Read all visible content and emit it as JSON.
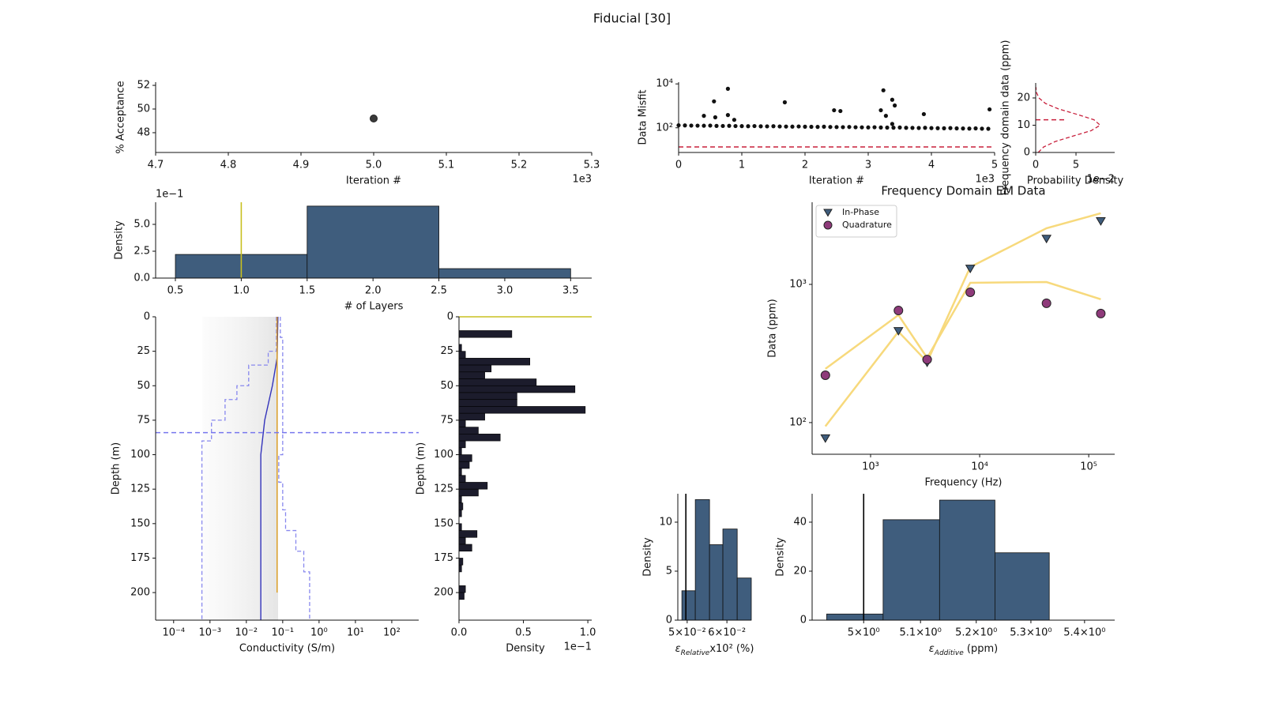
{
  "title": "Fiducial [30]",
  "chart_data": [
    {
      "type": "scatter",
      "xlabel": "Iteration #",
      "ylabel": "% Acceptance",
      "x_offset": "1e3",
      "xlim": [
        4700,
        5300
      ],
      "ylim": [
        46.33,
        52.27
      ],
      "xticks": [
        {
          "value": 4700,
          "label": "4.7"
        },
        {
          "value": 4800,
          "label": "4.8"
        },
        {
          "value": 4900,
          "label": "4.9"
        },
        {
          "value": 5000,
          "label": "5.0"
        },
        {
          "value": 5100,
          "label": "5.1"
        },
        {
          "value": 5200,
          "label": "5.2"
        },
        {
          "value": 5300,
          "label": "5.3"
        }
      ],
      "yticks": [
        48,
        50,
        52
      ],
      "series": [
        {
          "color": "#3a3a3a",
          "marker": "o",
          "x": [
            5000
          ],
          "y": [
            49.2
          ]
        }
      ]
    },
    {
      "type": "scatter",
      "xlabel": "Iteration #",
      "ylabel": "Data Misfit",
      "x_offset": "1e3",
      "yscale": "log",
      "xlim": [
        0,
        5000
      ],
      "ylim": [
        7.5,
        12000
      ],
      "xticks": [
        0,
        {
          "value": 1000,
          "label": "1"
        },
        {
          "value": 2000,
          "label": "2"
        },
        {
          "value": 3000,
          "label": "3"
        },
        {
          "value": 4000,
          "label": "4"
        },
        {
          "value": 5000,
          "label": "5"
        }
      ],
      "yticks": [
        {
          "value": 100,
          "label": "10²"
        },
        {
          "value": 10000,
          "label": "10⁴"
        }
      ],
      "hlines": [
        {
          "value": 13.4,
          "color": "#c8203c",
          "dash": true
        }
      ],
      "series": [
        {
          "color": "#111111",
          "marker": "o",
          "x": [
            0,
            100,
            200,
            300,
            400,
            500,
            600,
            700,
            800,
            900,
            1000,
            1100,
            1200,
            1300,
            1400,
            1500,
            1600,
            1700,
            1800,
            1900,
            2000,
            2100,
            2200,
            2300,
            2400,
            2500,
            2600,
            2700,
            2800,
            2900,
            3000,
            3100,
            3200,
            3300,
            3400,
            3500,
            3600,
            3700,
            3800,
            3900,
            4000,
            4100,
            4200,
            4300,
            4400,
            4500,
            4600,
            4700,
            4800,
            4900,
            400,
            560,
            580,
            780,
            780,
            880,
            1680,
            2460,
            2560,
            3200,
            3240,
            3280,
            3380,
            3380,
            3420,
            3880,
            4920
          ],
          "y": [
            130,
            128,
            126,
            125,
            124,
            126,
            122,
            121,
            123,
            120,
            119,
            118,
            120,
            117,
            116,
            118,
            115,
            114,
            113,
            115,
            112,
            111,
            110,
            112,
            109,
            108,
            107,
            109,
            106,
            105,
            104,
            106,
            103,
            102,
            101,
            103,
            100,
            99,
            98,
            100,
            97,
            96,
            95,
            97,
            94,
            93,
            92,
            94,
            91,
            90,
            350,
            1600,
            300,
            6000,
            380,
            230,
            1450,
            630,
            580,
            630,
            5100,
            350,
            1900,
            150,
            1040,
            420,
            690
          ]
        }
      ]
    },
    {
      "type": "line",
      "xlabel": "Probability Density",
      "ylabel": "Frequency domain data (ppm)",
      "x_offset": "1e−2",
      "xlim": [
        0,
        9.8
      ],
      "ylim": [
        0,
        25.5
      ],
      "xticks": [
        0,
        5
      ],
      "yticks": [
        0,
        10,
        20
      ],
      "hlines": [
        {
          "value": 12,
          "color": "#c8203c",
          "dash": true,
          "xrange": [
            0,
            3.8
          ]
        }
      ],
      "series": [
        {
          "color": "#c8203c",
          "dash": true,
          "x": [
            0.31,
            0.98,
            2.41,
            4.62,
            6.88,
            8.0,
            7.23,
            5.1,
            2.8,
            1.2,
            0.4,
            0.1,
            0.02
          ],
          "y": [
            0,
            2,
            4,
            6,
            8,
            10,
            12,
            14,
            16,
            18,
            20,
            22,
            24
          ]
        }
      ]
    },
    {
      "type": "histogram",
      "xlabel": "# of Layers",
      "ylabel": "Density",
      "y_offset": "1e−1",
      "xlim": [
        0.35,
        3.66
      ],
      "ylim": [
        0,
        7.06
      ],
      "xticks": [
        0.5,
        {
          "value": 1,
          "label": "1.0"
        },
        1.5,
        {
          "value": 2,
          "label": "2.0"
        },
        2.5,
        {
          "value": 3,
          "label": "3.0"
        },
        3.5
      ],
      "yticks": [
        {
          "value": 0,
          "label": "0.0"
        },
        2.5,
        {
          "value": 5,
          "label": "5.0"
        }
      ],
      "bins": [
        0.5,
        1.5,
        2.5,
        3.5
      ],
      "values": [
        2.2,
        6.7,
        0.88
      ],
      "color": "#3f5d7d",
      "vlines": [
        {
          "value": 1.0,
          "color": "#c8c020"
        }
      ]
    },
    {
      "type": "line",
      "xlabel": "Conductivity (S/m)",
      "ylabel": "Depth (m)",
      "xscale": "log",
      "xlim": [
        3.2e-05,
        550
      ],
      "ylim": [
        220,
        0
      ],
      "xticks": [
        {
          "value": 0.0001,
          "label": "10⁻⁴"
        },
        {
          "value": 0.001,
          "label": "10⁻³"
        },
        {
          "value": 0.01,
          "label": "10⁻²"
        },
        {
          "value": 0.1,
          "label": "10⁻¹"
        },
        {
          "value": 1,
          "label": "10⁰"
        },
        {
          "value": 10,
          "label": "10¹"
        },
        {
          "value": 100,
          "label": "10²"
        }
      ],
      "yticks": [
        0,
        25,
        50,
        75,
        100,
        125,
        150,
        175,
        200
      ],
      "hlines": [
        {
          "value": 84,
          "color": "#7777ee",
          "dash": true
        }
      ],
      "series": [
        {
          "color": "#8888ee",
          "dash": true,
          "x": [
            0.067,
            0.067,
            0.04,
            0.04,
            0.0116,
            0.0116,
            0.0055,
            0.0055,
            0.0026,
            0.0026,
            0.0011,
            0.0011,
            0.0006,
            0.0006
          ],
          "y": [
            0,
            25,
            25,
            35,
            35,
            50,
            50,
            60,
            60,
            75,
            75,
            90,
            90,
            220
          ]
        },
        {
          "color": "#3333bb",
          "x": [
            0.074,
            0.07,
            0.052,
            0.032,
            0.025,
            0.025
          ],
          "y": [
            0,
            30,
            50,
            75,
            100,
            220
          ]
        },
        {
          "color": "#8888ee",
          "dash": true,
          "x": [
            0.086,
            0.086,
            0.1,
            0.1,
            0.078,
            0.078,
            0.1,
            0.1,
            0.12,
            0.12,
            0.23,
            0.23,
            0.38,
            0.38,
            0.55,
            0.55
          ],
          "y": [
            0,
            15,
            15,
            100,
            100,
            120,
            120,
            140,
            140,
            155,
            155,
            170,
            170,
            185,
            185,
            220
          ]
        },
        {
          "color": "#e0a020",
          "x": [
            0.07,
            0.07
          ],
          "y": [
            0,
            200
          ]
        }
      ]
    },
    {
      "type": "histogram",
      "orientation": "horizontal",
      "xlabel": "Density",
      "ylabel": "Depth (m)",
      "x_offset": "1e−1",
      "xlim": [
        0,
        1.03
      ],
      "ylim": [
        220,
        0
      ],
      "xticks": [
        {
          "value": 0,
          "label": "0.0"
        },
        0.5,
        {
          "value": 1,
          "label": "1.0"
        }
      ],
      "yticks": [
        0,
        25,
        50,
        75,
        100,
        125,
        150,
        175,
        200
      ],
      "bins": [
        0,
        5,
        10,
        15,
        20,
        25,
        30,
        35,
        40,
        45,
        50,
        55,
        60,
        65,
        70,
        75,
        80,
        85,
        90,
        95,
        100,
        105,
        110,
        115,
        120,
        125,
        130,
        135,
        140,
        145,
        150,
        155,
        160,
        165,
        170,
        175,
        180,
        185,
        190,
        195,
        200,
        205,
        210,
        215,
        220
      ],
      "values": [
        0,
        0,
        0.41,
        0,
        0.02,
        0.05,
        0.55,
        0.25,
        0.2,
        0.6,
        0.9,
        0.45,
        0.45,
        0.98,
        0.2,
        0.05,
        0.15,
        0.32,
        0.05,
        0.02,
        0.1,
        0.08,
        0.02,
        0.05,
        0.22,
        0.15,
        0.02,
        0.03,
        0.02,
        0,
        0.02,
        0.14,
        0.05,
        0.1,
        0,
        0.03,
        0.02,
        0,
        0,
        0.05,
        0.04,
        0,
        0,
        0
      ],
      "color": "#1c1c2c",
      "hlines": [
        {
          "value": 0,
          "color": "#c8c020"
        }
      ]
    },
    {
      "type": "scatter",
      "title": "Frequency Domain EM Data",
      "xlabel": "Frequency (Hz)",
      "ylabel": "Data (ppm)",
      "xscale": "log",
      "yscale": "log",
      "xlim": [
        291,
        173000
      ],
      "ylim": [
        59,
        3930
      ],
      "legend": "upper left",
      "xticks": [
        {
          "value": 1000,
          "label": "10³"
        },
        {
          "value": 10000,
          "label": "10⁴"
        },
        {
          "value": 100000,
          "label": "10⁵"
        }
      ],
      "yticks": [
        {
          "value": 100,
          "label": "10²"
        },
        {
          "value": 1000,
          "label": "10³"
        }
      ],
      "series": [
        {
          "line": true,
          "color": "#f7d97c",
          "x": [
            385,
            1800,
            3300,
            8200,
            41000,
            129000
          ],
          "y": [
            94,
            455,
            275,
            1335,
            2550,
            3270
          ]
        },
        {
          "line": true,
          "color": "#f7d97c",
          "x": [
            385,
            1800,
            3300,
            8200,
            41000,
            129000
          ],
          "y": [
            245,
            600,
            294,
            1027,
            1040,
            780
          ]
        },
        {
          "name": "In-Phase",
          "marker": "v",
          "color": "#3f5d7d",
          "x": [
            385,
            1800,
            3300,
            8200,
            41000,
            129000
          ],
          "y": [
            77,
            460,
            272,
            1300,
            2140,
            2870
          ]
        },
        {
          "name": "Quadrature",
          "marker": "o",
          "color": "#8e3a7a",
          "x": [
            385,
            1800,
            3300,
            8200,
            41000,
            129000
          ],
          "y": [
            220,
            647,
            286,
            877,
            730,
            615
          ]
        }
      ]
    },
    {
      "type": "histogram",
      "xlabel": [
        "ε",
        "Relative",
        "x10² (%)"
      ],
      "ylabel": "Density",
      "xscale": "log",
      "xlim": [
        0.0479,
        0.0671
      ],
      "ylim": [
        0,
        12.9
      ],
      "xticks": [
        {
          "value": 0.05,
          "label": "5×10⁻²"
        },
        {
          "value": 0.06,
          "label": "6×10⁻²"
        }
      ],
      "yticks": [
        0,
        5,
        10
      ],
      "bins": [
        0.0488,
        0.0519,
        0.0554,
        0.0589,
        0.0629,
        0.0671
      ],
      "values": [
        3.0,
        12.3,
        7.7,
        9.3,
        4.3
      ],
      "color": "#3f5d7d",
      "vlines": [
        {
          "value": 0.0497,
          "color": "#000000"
        }
      ]
    },
    {
      "type": "histogram",
      "xlabel": [
        "ε",
        "Additive",
        " (ppm)"
      ],
      "ylabel": "Density",
      "xscale": "log",
      "xlim": [
        4.911,
        5.457
      ],
      "ylim": [
        0,
        51.6
      ],
      "xticks": [
        {
          "value": 5.0,
          "label": "5×10⁰"
        },
        {
          "value": 5.1,
          "label": "5.1×10⁰"
        },
        {
          "value": 5.2,
          "label": "5.2×10⁰"
        },
        {
          "value": 5.3,
          "label": "5.3×10⁰"
        },
        {
          "value": 5.4,
          "label": "5.4×10⁰"
        }
      ],
      "yticks": [
        0,
        20,
        40
      ],
      "bins": [
        4.936,
        5.034,
        5.134,
        5.234,
        5.334
      ],
      "values": [
        2.5,
        41,
        49,
        27.5
      ],
      "color": "#3f5d7d",
      "vlines": [
        {
          "value": 5.0,
          "color": "#000000"
        }
      ]
    }
  ]
}
